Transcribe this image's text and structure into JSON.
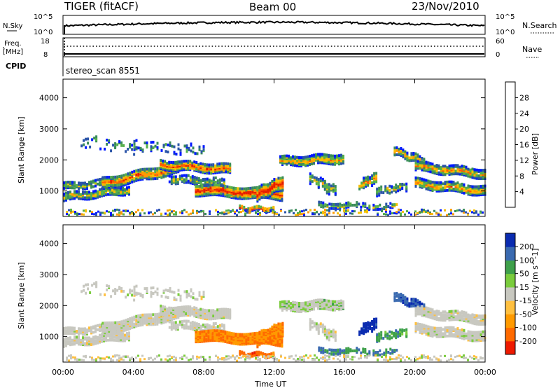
{
  "header": {
    "radar": "TIGER (fitACF)",
    "beam": "Beam 00",
    "date": "23/Nov/2010"
  },
  "top_panel": {
    "left_label": "N.Sky",
    "right_label": "N.Search",
    "left_ticks": [
      "10^5",
      "10^0"
    ],
    "right_ticks": [
      "10^5",
      "10^0"
    ]
  },
  "freq_panel": {
    "left_label_1": "Freq.",
    "left_label_2": "[MHz]",
    "right_label": "Nave",
    "left_ticks": [
      "18",
      "8"
    ],
    "right_ticks": [
      "60",
      "0"
    ]
  },
  "cpid": {
    "label": "CPID",
    "value": "stereo_scan 8551"
  },
  "colors": {
    "power": [
      "#0019ff",
      "#2a54a8",
      "#3a8c5a",
      "#56b04a",
      "#f5c000",
      "#ff9b00",
      "#ff5a00",
      "#e61e00"
    ],
    "velocity_neg": [
      "#ee1a00",
      "#ff6a00",
      "#ff9a00",
      "#ffc040"
    ],
    "velocity_pos": [
      "#0a2bb0",
      "#3a6ab0",
      "#3ea04a",
      "#7acc3c"
    ],
    "velocity_zero": "#c8c8c0"
  },
  "chart_data": [
    {
      "type": "heatmap",
      "title": "Power",
      "xlabel": "",
      "ylabel": "Slant Range [km]",
      "x_ticks": [
        "00:00",
        "04:00",
        "08:00",
        "12:00",
        "16:00",
        "20:00",
        "00:00"
      ],
      "x_range_hours": [
        0,
        24
      ],
      "y_ticks": [
        1000,
        2000,
        3000,
        4000
      ],
      "ylim": [
        180,
        4600
      ],
      "colorbar": {
        "label": "Power [dB]",
        "ticks": [
          4,
          8,
          12,
          16,
          20,
          24,
          28
        ],
        "range": [
          0,
          32
        ]
      }
    },
    {
      "type": "heatmap",
      "title": "Velocity",
      "xlabel": "Time UT",
      "ylabel": "Slant Range [km]",
      "x_ticks": [
        "00:00",
        "04:00",
        "08:00",
        "12:00",
        "16:00",
        "20:00",
        "00:00"
      ],
      "x_range_hours": [
        0,
        24
      ],
      "y_ticks": [
        1000,
        2000,
        3000,
        4000
      ],
      "ylim": [
        180,
        4600
      ],
      "colorbar": {
        "label": "Velocity [m s^-1]",
        "ticks": [
          -200,
          -100,
          -50,
          -15,
          15,
          50,
          100,
          200
        ],
        "range": [
          -250,
          250
        ]
      }
    }
  ]
}
